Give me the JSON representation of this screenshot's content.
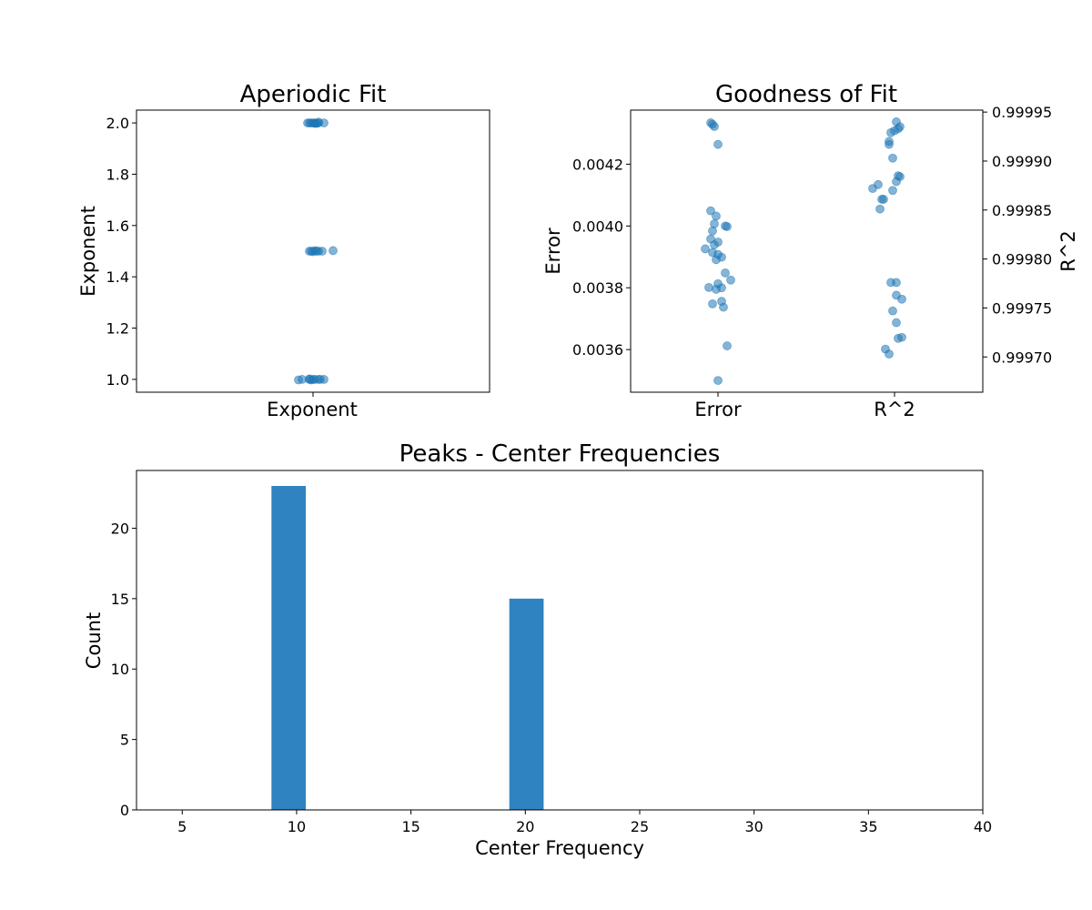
{
  "colors": {
    "point": "#1f77b4",
    "bar": "#2e83c0"
  },
  "chart_data": [
    {
      "type": "scatter",
      "title": "Aperiodic Fit",
      "xlabel": "",
      "ylabel": "Exponent",
      "categories": [
        "Exponent"
      ],
      "ylim": [
        0.95,
        2.05
      ],
      "yticks": [
        "1.0",
        "1.2",
        "1.4",
        "1.6",
        "1.8",
        "2.0"
      ],
      "grid": false,
      "series": [
        {
          "category": "Exponent",
          "points": [
            {
              "x": -0.03,
              "y": 2.0
            },
            {
              "x": -0.02,
              "y": 2.0
            },
            {
              "x": -0.01,
              "y": 2.0
            },
            {
              "x": 0.0,
              "y": 2.0
            },
            {
              "x": 0.01,
              "y": 2.0
            },
            {
              "x": 0.02,
              "y": 1.998
            },
            {
              "x": 0.03,
              "y": 2.0
            },
            {
              "x": 0.06,
              "y": 2.0
            },
            {
              "x": 0.03,
              "y": 2.003
            },
            {
              "x": 0.01,
              "y": 1.998
            },
            {
              "x": -0.02,
              "y": 1.5
            },
            {
              "x": -0.01,
              "y": 1.5
            },
            {
              "x": 0.0,
              "y": 1.498
            },
            {
              "x": 0.02,
              "y": 1.5
            },
            {
              "x": 0.03,
              "y": 1.5
            },
            {
              "x": 0.05,
              "y": 1.5
            },
            {
              "x": 0.11,
              "y": 1.502
            },
            {
              "x": 0.01,
              "y": 1.502
            },
            {
              "x": -0.08,
              "y": 0.998
            },
            {
              "x": -0.06,
              "y": 1.0
            },
            {
              "x": -0.02,
              "y": 1.0
            },
            {
              "x": -0.01,
              "y": 0.998
            },
            {
              "x": 0.0,
              "y": 1.0
            },
            {
              "x": 0.01,
              "y": 1.0
            },
            {
              "x": 0.03,
              "y": 1.0
            },
            {
              "x": 0.04,
              "y": 1.0
            },
            {
              "x": 0.06,
              "y": 1.0
            },
            {
              "x": -0.02,
              "y": 1.002
            }
          ]
        }
      ]
    },
    {
      "type": "scatter",
      "title": "Goodness of Fit",
      "xlabel": "",
      "ylabel": "Error",
      "ylabel_right": "R^2",
      "categories": [
        "Error",
        "R^2"
      ],
      "ylim": [
        0.003462,
        0.004375
      ],
      "yticks": [
        "0.0036",
        "0.0038",
        "0.0040",
        "0.0042"
      ],
      "ylim_right": [
        0.999664,
        0.999952
      ],
      "yticks_right": [
        "0.99970",
        "0.99975",
        "0.99980",
        "0.99985",
        "0.99990",
        "0.99995"
      ],
      "grid": false,
      "series": [
        {
          "name": "Error",
          "axis": "left",
          "points": [
            {
              "x": -0.04,
              "y": 0.004334
            },
            {
              "x": -0.03,
              "y": 0.004329
            },
            {
              "x": -0.02,
              "y": 0.004322
            },
            {
              "x": 0.0,
              "y": 0.004264
            },
            {
              "x": -0.04,
              "y": 0.004049
            },
            {
              "x": -0.01,
              "y": 0.004032
            },
            {
              "x": -0.02,
              "y": 0.004007
            },
            {
              "x": 0.04,
              "y": 0.004
            },
            {
              "x": 0.05,
              "y": 0.003998
            },
            {
              "x": -0.03,
              "y": 0.003984
            },
            {
              "x": -0.04,
              "y": 0.003958
            },
            {
              "x": 0.0,
              "y": 0.003948
            },
            {
              "x": -0.02,
              "y": 0.003939
            },
            {
              "x": -0.07,
              "y": 0.003926
            },
            {
              "x": -0.03,
              "y": 0.003914
            },
            {
              "x": 0.0,
              "y": 0.003908
            },
            {
              "x": 0.02,
              "y": 0.003899
            },
            {
              "x": -0.01,
              "y": 0.003891
            },
            {
              "x": 0.04,
              "y": 0.003848
            },
            {
              "x": 0.07,
              "y": 0.003825
            },
            {
              "x": 0.0,
              "y": 0.003813
            },
            {
              "x": -0.05,
              "y": 0.003801
            },
            {
              "x": 0.02,
              "y": 0.0038
            },
            {
              "x": -0.01,
              "y": 0.003795
            },
            {
              "x": 0.02,
              "y": 0.003756
            },
            {
              "x": -0.03,
              "y": 0.003748
            },
            {
              "x": 0.03,
              "y": 0.003737
            },
            {
              "x": 0.05,
              "y": 0.003612
            },
            {
              "x": 0.0,
              "y": 0.0035
            }
          ]
        },
        {
          "name": "R^2",
          "axis": "right",
          "points": [
            {
              "x": 0.01,
              "y": 0.99994
            },
            {
              "x": 0.03,
              "y": 0.999935
            },
            {
              "x": 0.02,
              "y": 0.999933
            },
            {
              "x": 0.0,
              "y": 0.999931
            },
            {
              "x": -0.02,
              "y": 0.999929
            },
            {
              "x": -0.03,
              "y": 0.99992
            },
            {
              "x": -0.03,
              "y": 0.999917
            },
            {
              "x": -0.01,
              "y": 0.999903
            },
            {
              "x": 0.02,
              "y": 0.999885
            },
            {
              "x": 0.03,
              "y": 0.999884
            },
            {
              "x": 0.01,
              "y": 0.999879
            },
            {
              "x": -0.09,
              "y": 0.999876
            },
            {
              "x": -0.12,
              "y": 0.999872
            },
            {
              "x": -0.01,
              "y": 0.99987
            },
            {
              "x": -0.07,
              "y": 0.999861
            },
            {
              "x": -0.06,
              "y": 0.999861
            },
            {
              "x": -0.08,
              "y": 0.999851
            },
            {
              "x": -0.02,
              "y": 0.999776
            },
            {
              "x": 0.01,
              "y": 0.999776
            },
            {
              "x": 0.01,
              "y": 0.999763
            },
            {
              "x": 0.04,
              "y": 0.999759
            },
            {
              "x": -0.01,
              "y": 0.999747
            },
            {
              "x": 0.01,
              "y": 0.999735
            },
            {
              "x": 0.04,
              "y": 0.99972
            },
            {
              "x": 0.02,
              "y": 0.999719
            },
            {
              "x": -0.05,
              "y": 0.999708
            },
            {
              "x": -0.03,
              "y": 0.999703
            }
          ]
        }
      ]
    },
    {
      "type": "bar",
      "title": "Peaks - Center Frequencies",
      "xlabel": "Center Frequency",
      "ylabel": "Count",
      "xlim": [
        3,
        40
      ],
      "ylim": [
        0,
        24.1
      ],
      "xticks": [
        "5",
        "10",
        "15",
        "20",
        "25",
        "30",
        "35",
        "40"
      ],
      "yticks": [
        "0",
        "5",
        "10",
        "15",
        "20"
      ],
      "grid": false,
      "bins": [
        {
          "x0": 8.9,
          "x1": 10.4,
          "count": 23
        },
        {
          "x0": 19.3,
          "x1": 20.8,
          "count": 15
        }
      ]
    }
  ]
}
